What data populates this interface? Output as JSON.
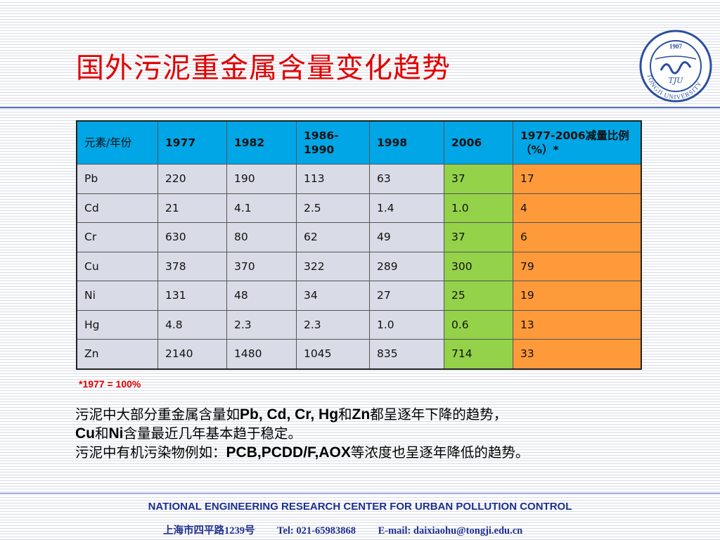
{
  "title": "国外污泥重金属含量变化趋势",
  "logo": {
    "year": "1907",
    "text": "TONGJI UNIVERSITY",
    "monogram": "TJU"
  },
  "table": {
    "headers": [
      "元素/年份",
      "1977",
      "1982",
      "1986-\n1990",
      "1998",
      "2006",
      "1977-2006减量比例（%）*"
    ],
    "rows": [
      [
        "Pb",
        "220",
        "190",
        "113",
        "63",
        "37",
        "17"
      ],
      [
        "Cd",
        "21",
        "4.1",
        "2.5",
        "1.4",
        "1.0",
        "4"
      ],
      [
        "Cr",
        "630",
        "80",
        "62",
        "49",
        "37",
        "6"
      ],
      [
        "Cu",
        "378",
        "370",
        "322",
        "289",
        "300",
        "79"
      ],
      [
        "Ni",
        "131",
        "48",
        "34",
        "27",
        "25",
        "19"
      ],
      [
        "Hg",
        "4.8",
        "2.3",
        "2.3",
        "1.0",
        "0.6",
        "13"
      ],
      [
        "Zn",
        "2140",
        "1480",
        "1045",
        "835",
        "714",
        "33"
      ]
    ],
    "colors": {
      "header": "#00a6e6",
      "body": "#d9dce6",
      "col_2006": "#94d24a",
      "col_ratio": "#ff9a3a"
    }
  },
  "footnote": "*1977 = 100%",
  "body": {
    "line1_parts": [
      "污泥中大部分重金属含量如",
      "Pb,  Cd,  Cr,  Hg",
      "和",
      "Zn",
      "都呈逐年下降的趋势，"
    ],
    "line2_parts": [
      "Cu",
      "和",
      "Ni",
      "含量最近几年基本趋于稳定。"
    ],
    "line3_parts": [
      "污泥中有机污染物例如：",
      "PCB,PCDD/F,AOX",
      "等浓度也呈逐年降低的趋势。"
    ]
  },
  "footer": {
    "center_name": "NATIONAL ENGINEERING RESEARCH CENTER FOR URBAN POLLUTION CONTROL",
    "address": "上海市四平路1239号",
    "tel": "Tel: 021-65983868",
    "email": "E-mail: daixiaohu@tongji.edu.cn"
  }
}
